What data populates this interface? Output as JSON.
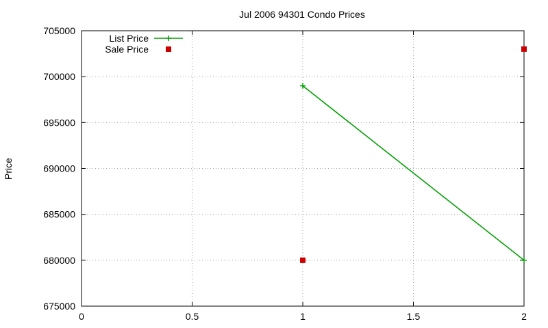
{
  "chart_data": {
    "type": "line",
    "title": "Jul 2006 94301 Condo Prices",
    "xlabel": "",
    "ylabel": "Price",
    "xlim": [
      0,
      2
    ],
    "ylim": [
      675000,
      705000
    ],
    "x_ticks": [
      "0",
      "0.5",
      "1",
      "1.5",
      "2"
    ],
    "x_tick_values": [
      0,
      0.5,
      1,
      1.5,
      2
    ],
    "y_ticks": [
      "675000",
      "680000",
      "685000",
      "690000",
      "695000",
      "700000",
      "705000"
    ],
    "y_tick_values": [
      675000,
      680000,
      685000,
      690000,
      695000,
      700000,
      705000
    ],
    "grid": true,
    "legend_position": "top-left",
    "series": [
      {
        "name": "List Price",
        "style": "linespoints",
        "marker": "plus",
        "color": "#00a000",
        "points": [
          {
            "x": 1,
            "y": 699000
          },
          {
            "x": 2,
            "y": 680000
          }
        ]
      },
      {
        "name": "Sale Price",
        "style": "points",
        "marker": "square",
        "color": "#cc0000",
        "points": [
          {
            "x": 1,
            "y": 680000
          },
          {
            "x": 2,
            "y": 703000
          }
        ]
      }
    ]
  }
}
